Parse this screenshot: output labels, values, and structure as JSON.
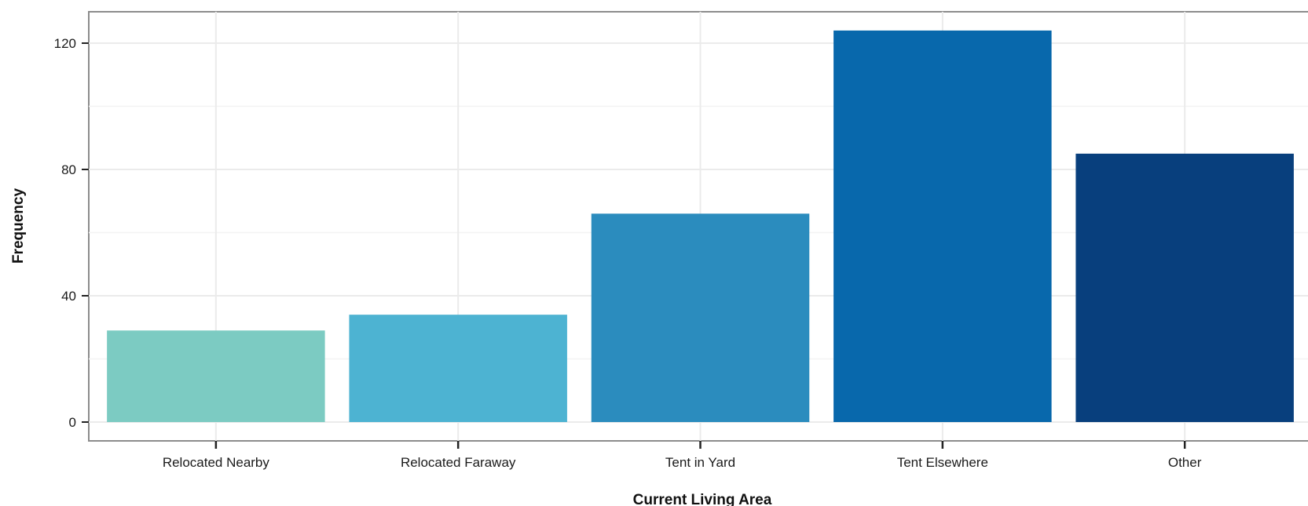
{
  "chart_data": {
    "type": "bar",
    "xlabel": "Current Living Area",
    "ylabel": "Frequency",
    "categories": [
      "Relocated Nearby",
      "Relocated Faraway",
      "Tent in Yard",
      "Tent Elsewhere",
      "Other"
    ],
    "values": [
      29,
      34,
      66,
      124,
      85
    ],
    "colors": [
      "#7ccbc2",
      "#4db3d2",
      "#2b8cbe",
      "#0868ac",
      "#083f7d"
    ],
    "yticks": [
      "0",
      "40",
      "80",
      "120"
    ],
    "ylim": [
      -6,
      130
    ],
    "grid": true,
    "legend": "none"
  }
}
